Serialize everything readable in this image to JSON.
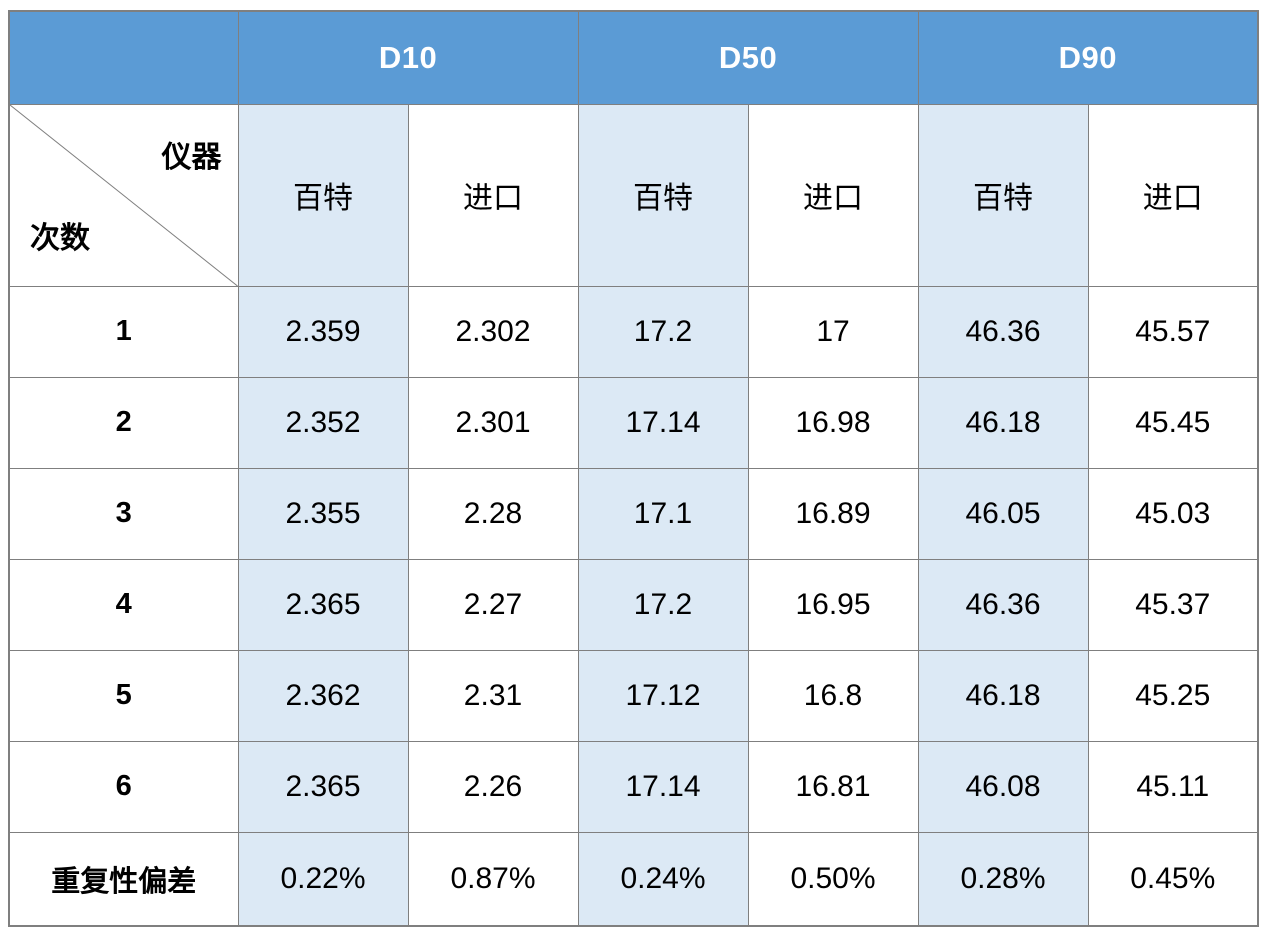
{
  "chart_data": {
    "type": "table",
    "group_headers": [
      {
        "label": "D10",
        "span": 2
      },
      {
        "label": "D50",
        "span": 2
      },
      {
        "label": "D90",
        "span": 2
      }
    ],
    "corner": {
      "top_right": "仪器",
      "bottom_left": "次数"
    },
    "sub_headers": [
      "百特",
      "进口",
      "百特",
      "进口",
      "百特",
      "进口"
    ],
    "rows": [
      {
        "label": "1",
        "values": [
          "2.359",
          "2.302",
          "17.2",
          "17",
          "46.36",
          "45.57"
        ]
      },
      {
        "label": "2",
        "values": [
          "2.352",
          "2.301",
          "17.14",
          "16.98",
          "46.18",
          "45.45"
        ]
      },
      {
        "label": "3",
        "values": [
          "2.355",
          "2.28",
          "17.1",
          "16.89",
          "46.05",
          "45.03"
        ]
      },
      {
        "label": "4",
        "values": [
          "2.365",
          "2.27",
          "17.2",
          "16.95",
          "46.36",
          "45.37"
        ]
      },
      {
        "label": "5",
        "values": [
          "2.362",
          "2.31",
          "17.12",
          "16.8",
          "46.18",
          "45.25"
        ]
      },
      {
        "label": "6",
        "values": [
          "2.365",
          "2.26",
          "17.14",
          "16.81",
          "46.08",
          "45.11"
        ]
      },
      {
        "label": "重复性偏差",
        "values": [
          "0.22%",
          "0.87%",
          "0.24%",
          "0.50%",
          "0.28%",
          "0.45%"
        ]
      }
    ],
    "layout_hints": {
      "shaded_value_columns": [
        0,
        2,
        4
      ],
      "grid": true,
      "legend_position": "none"
    }
  },
  "colors": {
    "header_bg": "#5B9BD5",
    "header_text": "#FFFFFF",
    "shaded_column_bg": "#DCE9F5",
    "row_bg": "#FFFFFF",
    "border": "#7F7F7F",
    "text": "#000000"
  }
}
